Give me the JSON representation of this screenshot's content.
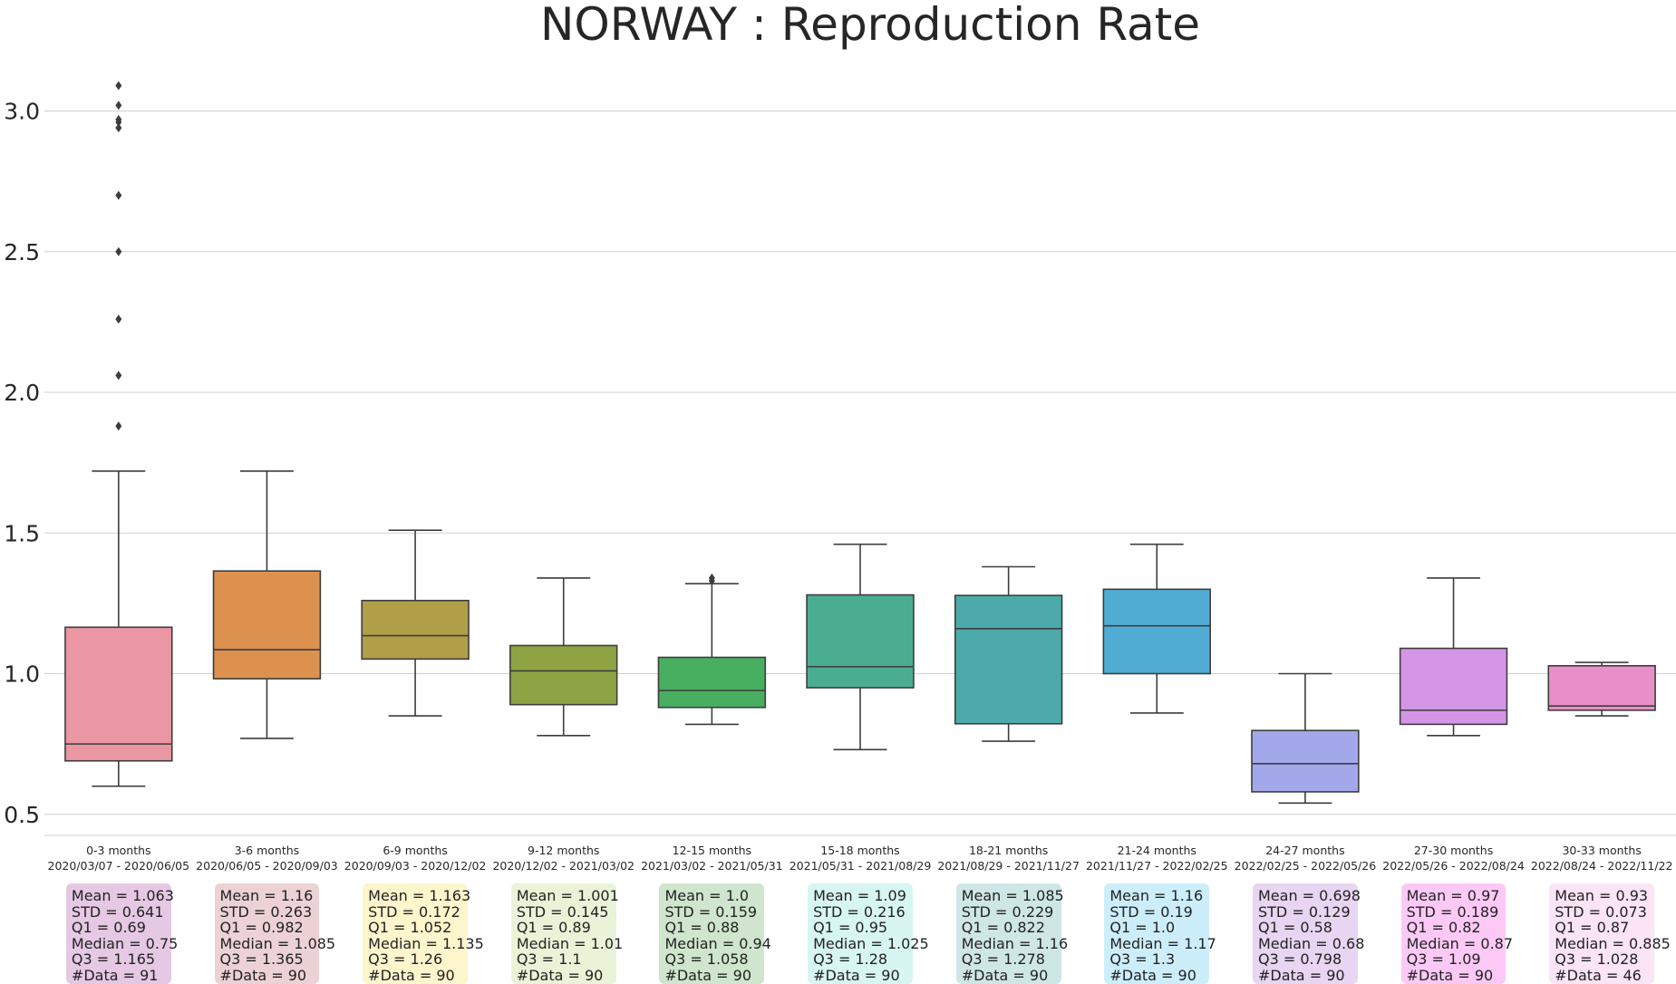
{
  "chart_data": {
    "type": "box",
    "title": "NORWAY : Reproduction Rate",
    "xlabel": "",
    "ylabel": "",
    "ylim": [
      0.41,
      3.25
    ],
    "yticks": [
      0.5,
      1.0,
      1.5,
      2.0,
      2.5,
      3.0
    ],
    "ytick_labels": [
      "0.5",
      "1.0",
      "1.5",
      "2.0",
      "2.5",
      "3.0"
    ],
    "grid": true,
    "categories": [
      {
        "label": "0-3 months",
        "range": "2020/03/07 - 2020/06/05"
      },
      {
        "label": "3-6 months",
        "range": "2020/06/05 - 2020/09/03"
      },
      {
        "label": "6-9 months",
        "range": "2020/09/03 - 2020/12/02"
      },
      {
        "label": "9-12 months",
        "range": "2020/12/02 - 2021/03/02"
      },
      {
        "label": "12-15 months",
        "range": "2021/03/02 - 2021/05/31"
      },
      {
        "label": "15-18 months",
        "range": "2021/05/31 - 2021/08/29"
      },
      {
        "label": "18-21 months",
        "range": "2021/08/29 - 2021/11/27"
      },
      {
        "label": "21-24 months",
        "range": "2021/11/27 - 2022/02/25"
      },
      {
        "label": "24-27 months",
        "range": "2022/02/25 - 2022/05/26"
      },
      {
        "label": "27-30 months",
        "range": "2022/05/26 - 2022/08/24"
      },
      {
        "label": "30-33 months",
        "range": "2022/08/24 - 2022/11/22"
      }
    ],
    "boxes": [
      {
        "q1": 0.69,
        "median": 0.75,
        "q3": 1.165,
        "whisker_low": 0.6,
        "whisker_high": 1.72,
        "outliers": [
          3.09,
          3.02,
          2.97,
          2.96,
          2.94,
          2.7,
          2.5,
          2.26,
          2.06,
          1.88
        ],
        "color": "#ea96a3"
      },
      {
        "q1": 0.982,
        "median": 1.085,
        "q3": 1.365,
        "whisker_low": 0.77,
        "whisker_high": 1.72,
        "outliers": [],
        "color": "#dc914f"
      },
      {
        "q1": 1.052,
        "median": 1.135,
        "q3": 1.26,
        "whisker_low": 0.85,
        "whisker_high": 1.51,
        "outliers": [],
        "color": "#b19e49"
      },
      {
        "q1": 0.89,
        "median": 1.01,
        "q3": 1.1,
        "whisker_low": 0.78,
        "whisker_high": 1.34,
        "outliers": [],
        "color": "#8ea444"
      },
      {
        "q1": 0.88,
        "median": 0.94,
        "q3": 1.058,
        "whisker_low": 0.82,
        "whisker_high": 1.32,
        "outliers": [
          1.34,
          1.33
        ],
        "color": "#48ae60"
      },
      {
        "q1": 0.95,
        "median": 1.025,
        "q3": 1.28,
        "whisker_low": 0.73,
        "whisker_high": 1.46,
        "outliers": [],
        "color": "#4aad92"
      },
      {
        "q1": 0.822,
        "median": 1.16,
        "q3": 1.278,
        "whisker_low": 0.76,
        "whisker_high": 1.38,
        "outliers": [],
        "color": "#4caaab"
      },
      {
        "q1": 1.0,
        "median": 1.17,
        "q3": 1.3,
        "whisker_low": 0.86,
        "whisker_high": 1.46,
        "outliers": [],
        "color": "#51acd4"
      },
      {
        "q1": 0.58,
        "median": 0.68,
        "q3": 0.798,
        "whisker_low": 0.54,
        "whisker_high": 1.0,
        "outliers": [],
        "color": "#a3a8ea"
      },
      {
        "q1": 0.82,
        "median": 0.87,
        "q3": 1.09,
        "whisker_low": 0.78,
        "whisker_high": 1.34,
        "outliers": [],
        "color": "#d495e7"
      },
      {
        "q1": 0.87,
        "median": 0.885,
        "q3": 1.028,
        "whisker_low": 0.85,
        "whisker_high": 1.04,
        "outliers": [],
        "color": "#e88fc8"
      }
    ],
    "stats": [
      {
        "lines": [
          "Mean = 1.063",
          "STD = 0.641",
          "Q1 = 0.69",
          "Median = 0.75",
          "Q3 = 1.165",
          "#Data = 91"
        ],
        "bg": "#e5c8e3"
      },
      {
        "lines": [
          "Mean = 1.16",
          "STD = 0.263",
          "Q1 = 0.982",
          "Median = 1.085",
          "Q3 = 1.365",
          "#Data = 90"
        ],
        "bg": "#ecd2d4"
      },
      {
        "lines": [
          "Mean = 1.163",
          "STD = 0.172",
          "Q1 = 1.052",
          "Median = 1.135",
          "Q3 = 1.26",
          "#Data = 90"
        ],
        "bg": "#fdf5cc"
      },
      {
        "lines": [
          "Mean = 1.001",
          "STD = 0.145",
          "Q1 = 0.89",
          "Median = 1.01",
          "Q3 = 1.1",
          "#Data = 90"
        ],
        "bg": "#eaf3d7"
      },
      {
        "lines": [
          "Mean = 1.0",
          "STD = 0.159",
          "Q1 = 0.88",
          "Median = 0.94",
          "Q3 = 1.058",
          "#Data = 90"
        ],
        "bg": "#cfe5cd"
      },
      {
        "lines": [
          "Mean = 1.09",
          "STD = 0.216",
          "Q1 = 0.95",
          "Median = 1.025",
          "Q3 = 1.28",
          "#Data = 90"
        ],
        "bg": "#d7f5f2"
      },
      {
        "lines": [
          "Mean = 1.085",
          "STD = 0.229",
          "Q1 = 0.822",
          "Median = 1.16",
          "Q3 = 1.278",
          "#Data = 90"
        ],
        "bg": "#cfe6e6"
      },
      {
        "lines": [
          "Mean = 1.16",
          "STD = 0.19",
          "Q1 = 1.0",
          "Median = 1.17",
          "Q3 = 1.3",
          "#Data = 90"
        ],
        "bg": "#cceefb"
      },
      {
        "lines": [
          "Mean = 0.698",
          "STD = 0.129",
          "Q1 = 0.58",
          "Median = 0.68",
          "Q3 = 0.798",
          "#Data = 90"
        ],
        "bg": "#e7d5f1"
      },
      {
        "lines": [
          "Mean = 0.97",
          "STD = 0.189",
          "Q1 = 0.82",
          "Median = 0.87",
          "Q3 = 1.09",
          "#Data = 90"
        ],
        "bg": "#fcc9f6"
      },
      {
        "lines": [
          "Mean = 0.93",
          "STD = 0.073",
          "Q1 = 0.87",
          "Median = 0.885",
          "Q3 = 1.028",
          "#Data = 46"
        ],
        "bg": "#fae4f6"
      }
    ]
  }
}
